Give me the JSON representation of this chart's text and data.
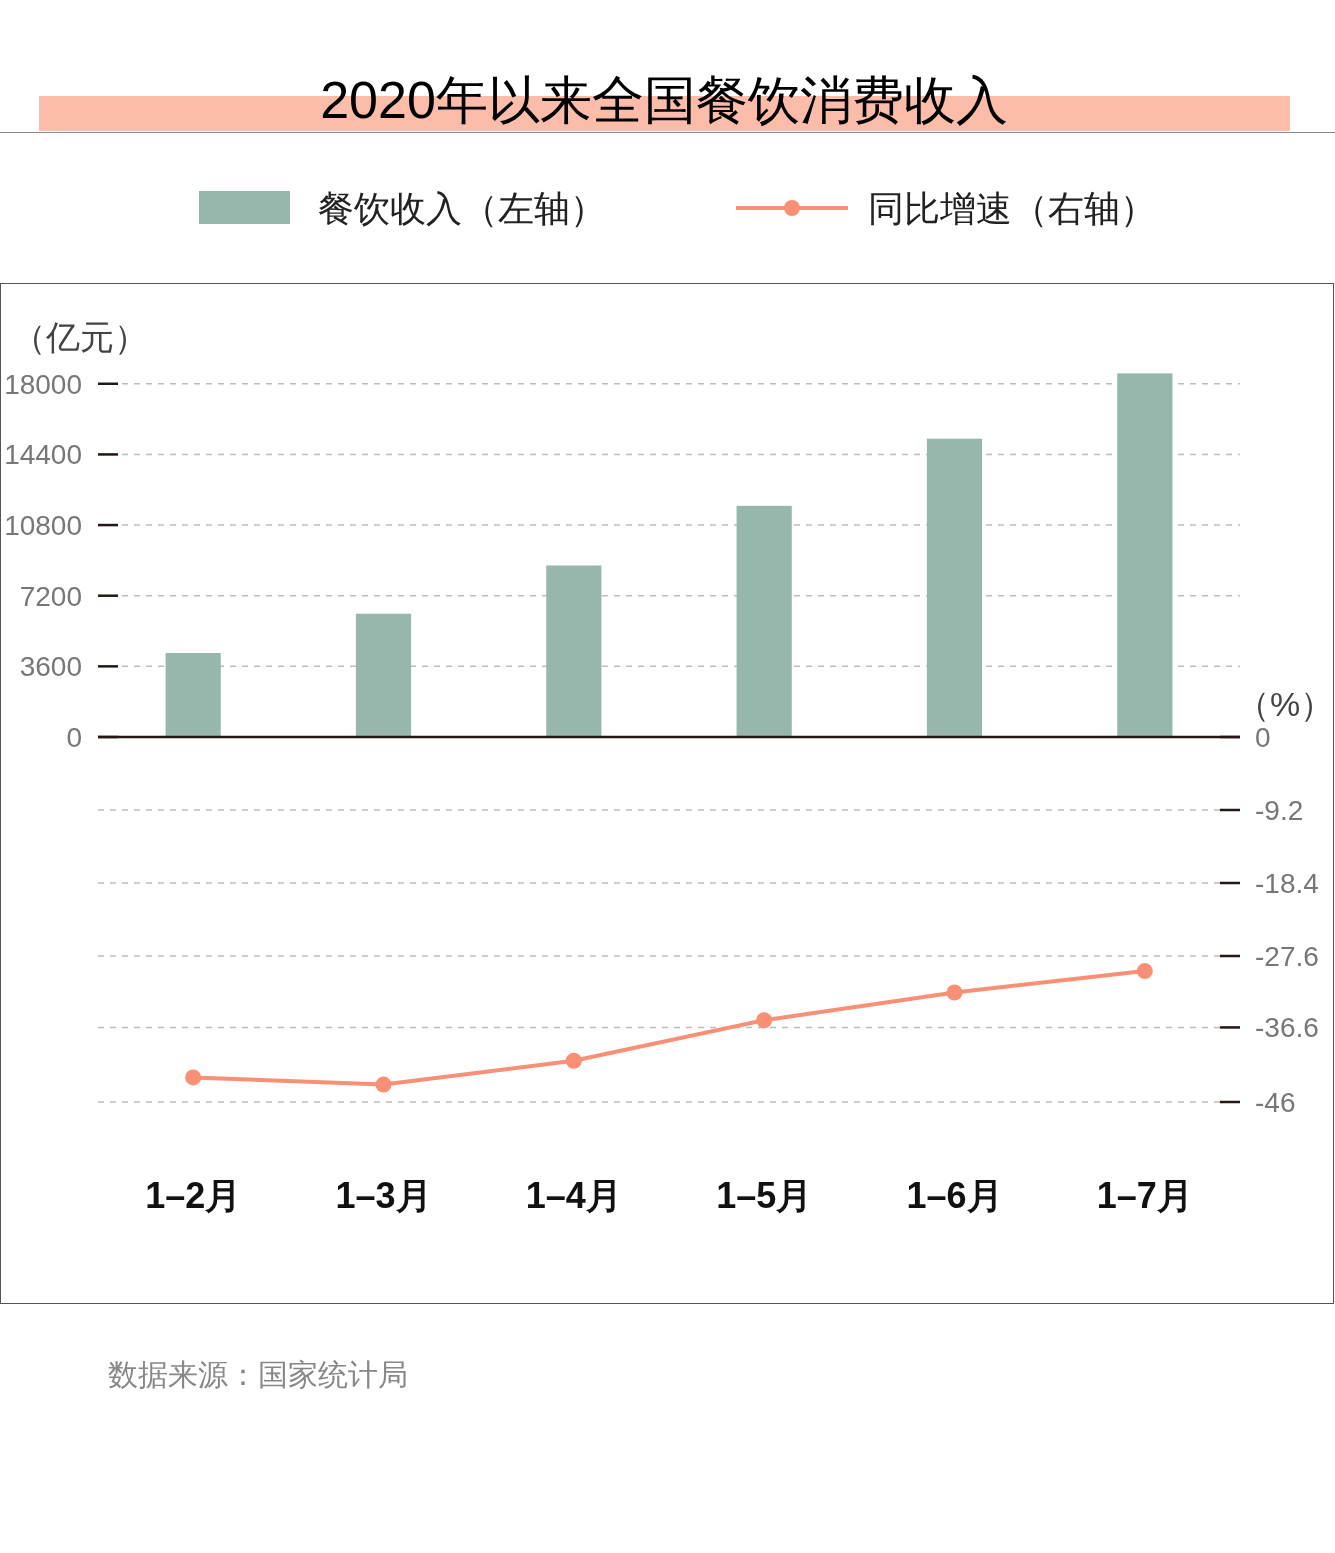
{
  "chart_data": {
    "type": "bar",
    "title": "2020年以来全国餐饮消费收入",
    "categories": [
      "1–2月",
      "1–3月",
      "1–4月",
      "1–5月",
      "1–6月",
      "1–7月"
    ],
    "ylabel": "（亿元）",
    "y2label": "（%）",
    "series": [
      {
        "name": "餐饮收入（左轴）",
        "type": "bar",
        "color": "#97b6ac",
        "values": [
          4280,
          6280,
          8740,
          11780,
          15200,
          18530
        ]
      },
      {
        "name": "同比增速（右轴）",
        "type": "line",
        "axis": "y2",
        "color": "#f98f74",
        "marker": "circle",
        "values": [
          -42.9,
          -43.8,
          -40.8,
          -35.7,
          -32.2,
          -29.5
        ]
      }
    ],
    "ylim": [
      -18600,
      18600
    ],
    "yticks": [
      0,
      3600,
      7200,
      10800,
      14400,
      18000
    ],
    "y2lim": [
      -46,
      46
    ],
    "y2ticks": [
      0,
      -9.2,
      -18.4,
      -27.6,
      -36.6,
      -46
    ],
    "grid": true,
    "legend": "top",
    "annotations": [
      "数据来源：国家统计局"
    ]
  }
}
